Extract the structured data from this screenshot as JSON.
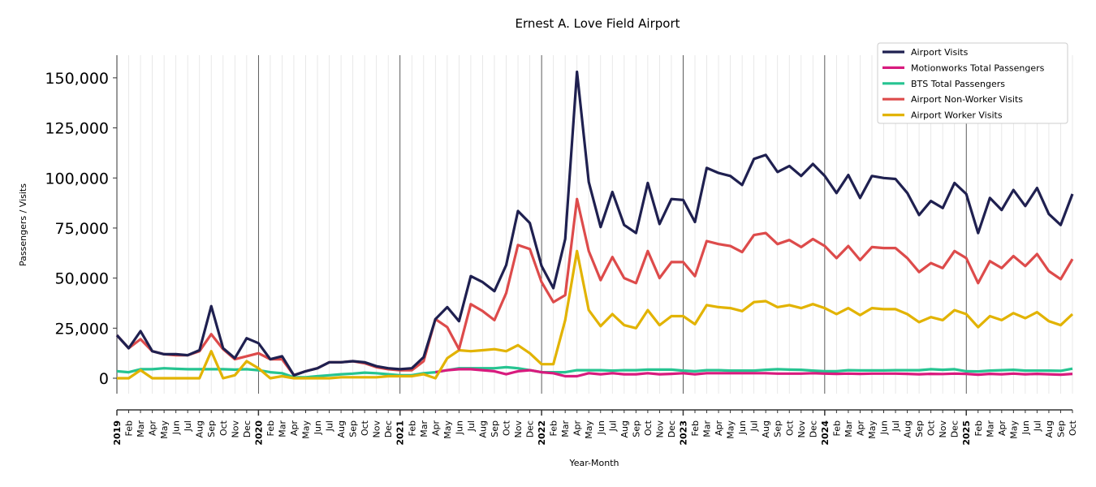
{
  "chart_data": {
    "type": "line",
    "title": "Ernest A. Love Field Airport",
    "xlabel": "Year-Month",
    "ylabel": "Passengers / Visits",
    "ylim": [
      -7700,
      161300
    ],
    "yticks": [
      0,
      25000,
      50000,
      75000,
      100000,
      125000,
      150000
    ],
    "ytick_labels": [
      "0",
      "25,000",
      "50,000",
      "75,000",
      "100,000",
      "125,000",
      "150,000"
    ],
    "x_start": "2019-01",
    "x_end": "2025-10",
    "month_labels": [
      "Jan",
      "Feb",
      "Mar",
      "Apr",
      "May",
      "Jun",
      "Jul",
      "Aug",
      "Sep",
      "Oct",
      "Nov",
      "Dec"
    ],
    "years": [
      "2019",
      "2020",
      "2021",
      "2022",
      "2023",
      "2024",
      "2025"
    ],
    "grid": "vertical monthly minor, yearly major",
    "legend_position": "top-right",
    "series": [
      {
        "name": "Airport Visits",
        "color": "#1f2050",
        "values": [
          21500,
          15000,
          23500,
          13500,
          12000,
          12000,
          11500,
          14000,
          36000,
          15000,
          10000,
          20000,
          17500,
          9500,
          11000,
          1500,
          3500,
          5000,
          8000,
          8000,
          8500,
          8000,
          6000,
          5000,
          4500,
          5000,
          10500,
          29500,
          35500,
          28500,
          51000,
          48000,
          43500,
          56500,
          83500,
          77500,
          56000,
          45000,
          69500,
          153000,
          98000,
          75500,
          93000,
          76500,
          72500,
          97500,
          77000,
          89500,
          89000,
          78000,
          105000,
          102500,
          101000,
          96500,
          109500,
          111500,
          103000,
          106000,
          101000,
          107000,
          101000,
          92500,
          101500,
          90000,
          101000,
          100000,
          99500,
          92500,
          81500,
          88500,
          85000,
          97500,
          92000,
          72500,
          90000,
          84000,
          94000,
          86000,
          95000,
          82000,
          76500,
          92000
        ]
      },
      {
        "name": "Motionworks Total Passengers",
        "color": "#d81b7e",
        "values": [
          null,
          null,
          null,
          null,
          null,
          null,
          null,
          null,
          null,
          null,
          null,
          null,
          null,
          null,
          null,
          null,
          null,
          null,
          null,
          null,
          null,
          null,
          null,
          null,
          null,
          null,
          null,
          3000,
          4000,
          4500,
          4500,
          4000,
          3500,
          2000,
          3500,
          4000,
          3000,
          2500,
          1000,
          1000,
          2500,
          2000,
          2500,
          2000,
          2000,
          2500,
          2000,
          2200,
          2500,
          2000,
          2500,
          2500,
          2500,
          2500,
          2500,
          2500,
          2300,
          2300,
          2300,
          2500,
          2300,
          2200,
          2300,
          2200,
          2300,
          2300,
          2300,
          2200,
          2000,
          2200,
          2100,
          2300,
          2200,
          1800,
          2200,
          2000,
          2300,
          2000,
          2200,
          2000,
          1800,
          2200
        ]
      },
      {
        "name": "BTS Total Passengers",
        "color": "#26c491",
        "values": [
          3500,
          3000,
          4500,
          4500,
          5000,
          4700,
          4500,
          4500,
          4500,
          4500,
          4300,
          4500,
          4000,
          3000,
          2500,
          500,
          500,
          1000,
          1500,
          2000,
          2300,
          2800,
          2500,
          2000,
          1500,
          1500,
          2500,
          3000,
          4000,
          5000,
          5000,
          5000,
          5000,
          5500,
          5000,
          4000,
          3000,
          3000,
          3000,
          4000,
          4000,
          4000,
          3800,
          4000,
          4000,
          4300,
          4300,
          4300,
          3800,
          3500,
          4000,
          4000,
          3800,
          3800,
          3800,
          4200,
          4500,
          4300,
          4200,
          3800,
          3500,
          3500,
          4000,
          3900,
          3900,
          3900,
          4000,
          4000,
          4000,
          4500,
          4200,
          4500,
          3500,
          3400,
          3800,
          4000,
          4200,
          3800,
          3800,
          3800,
          3700,
          4800
        ]
      },
      {
        "name": "Airport Non-Worker Visits",
        "color": "#dd4b4b",
        "values": [
          21500,
          15000,
          19500,
          13500,
          12000,
          11500,
          11500,
          13500,
          22000,
          14500,
          9500,
          11000,
          12500,
          9500,
          9500,
          1500,
          3500,
          5000,
          8000,
          8000,
          8500,
          7500,
          5500,
          4500,
          4000,
          4000,
          8500,
          29500,
          25500,
          14500,
          37000,
          33500,
          29000,
          42500,
          66500,
          64500,
          48000,
          38000,
          41500,
          89500,
          63500,
          49000,
          60500,
          50000,
          47500,
          63500,
          50000,
          58000,
          58000,
          51000,
          68500,
          67000,
          66000,
          63000,
          71500,
          72500,
          67000,
          69000,
          65500,
          69500,
          66000,
          60000,
          66000,
          59000,
          65500,
          65000,
          65000,
          60000,
          53000,
          57500,
          55000,
          63500,
          60000,
          47500,
          58500,
          55000,
          61000,
          56000,
          62000,
          53500,
          49500,
          59500
        ]
      },
      {
        "name": "Airport Worker Visits",
        "color": "#e2b300",
        "values": [
          0,
          0,
          4000,
          0,
          0,
          0,
          0,
          0,
          13500,
          0,
          1500,
          8500,
          5000,
          0,
          1000,
          0,
          0,
          0,
          0,
          500,
          500,
          500,
          500,
          1000,
          1000,
          1000,
          2000,
          0,
          10000,
          14000,
          13500,
          14000,
          14500,
          13500,
          16500,
          12500,
          7000,
          7000,
          29000,
          63500,
          34000,
          26000,
          32000,
          26500,
          25000,
          34000,
          26500,
          31000,
          31000,
          27000,
          36500,
          35500,
          35000,
          33500,
          38000,
          38500,
          35500,
          36500,
          35000,
          37000,
          35000,
          32000,
          35000,
          31500,
          35000,
          34500,
          34500,
          32000,
          28000,
          30500,
          29000,
          34000,
          32000,
          25500,
          31000,
          29000,
          32500,
          30000,
          33000,
          28500,
          26500,
          32000
        ]
      }
    ]
  }
}
